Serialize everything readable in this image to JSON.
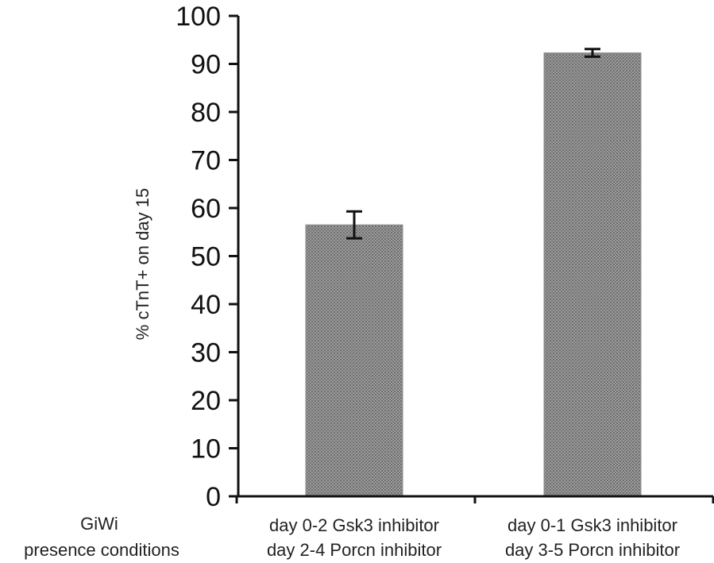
{
  "chart_data": {
    "type": "bar",
    "ylabel": "% cTnT+ on day 15",
    "xlabel": "",
    "ylim": [
      0,
      100
    ],
    "yticks": [
      0,
      10,
      20,
      30,
      40,
      50,
      60,
      70,
      80,
      90,
      100
    ],
    "row_label_lines": [
      "GiWi",
      "presence conditions"
    ],
    "categories": [
      {
        "lines": [
          "day 0-2 Gsk3 inhibitor",
          "day 2-4 Porcn inhibitor"
        ]
      },
      {
        "lines": [
          "day 0-1 Gsk3 inhibitor",
          "day 3-5 Porcn inhibitor"
        ]
      }
    ],
    "values": [
      56.5,
      92.3
    ],
    "errors": [
      2.8,
      0.8
    ],
    "bar_color": "#8c8c8c",
    "grid": false
  }
}
